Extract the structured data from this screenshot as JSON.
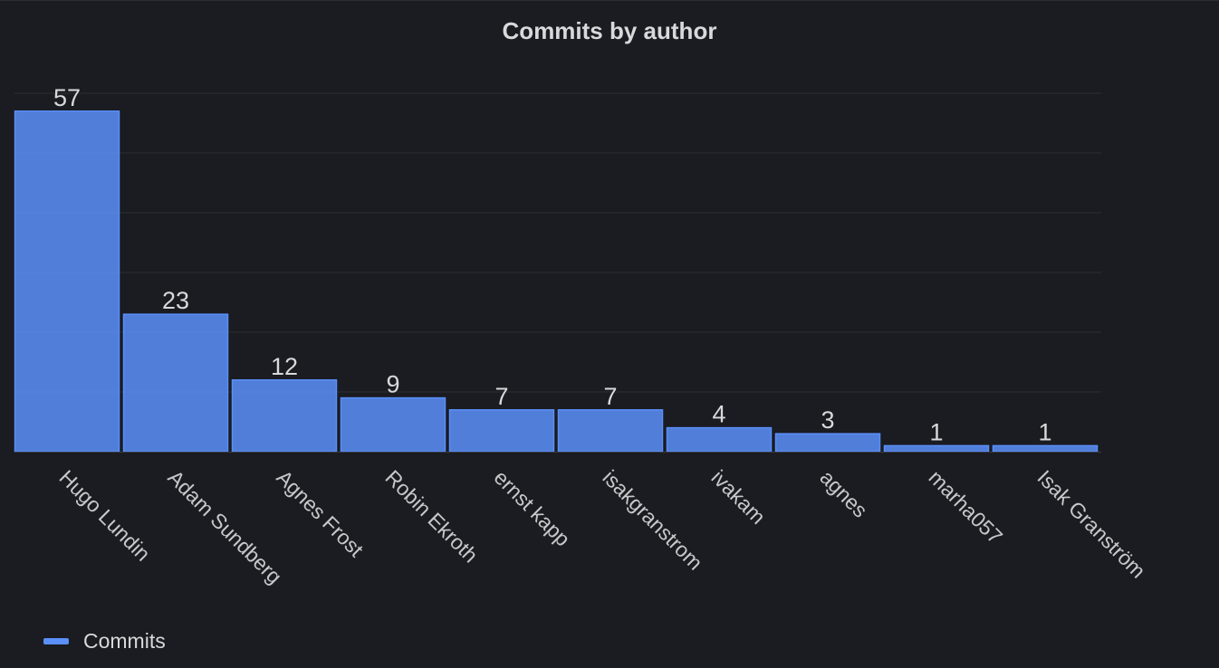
{
  "panel": {
    "title": "Commits by author"
  },
  "legend": {
    "label": "Commits",
    "color": "#5b8ff9"
  },
  "chart_data": {
    "type": "bar",
    "title": "Commits by author",
    "xlabel": "",
    "ylabel": "",
    "categories": [
      "Hugo Lundin",
      "Adam Sundberg",
      "Agnes Frost",
      "Robin Ekroth",
      "ernst kapp",
      "isakgranstrom",
      "ivakam",
      "agnes",
      "marha057",
      "Isak Granström"
    ],
    "series": [
      {
        "name": "Commits",
        "values": [
          57,
          23,
          12,
          9,
          7,
          7,
          4,
          3,
          1,
          1
        ],
        "color": "#5b8ff9"
      }
    ],
    "ylim": [
      0,
      60
    ],
    "grid": true,
    "legend_position": "bottom-left",
    "data_labels": true
  }
}
